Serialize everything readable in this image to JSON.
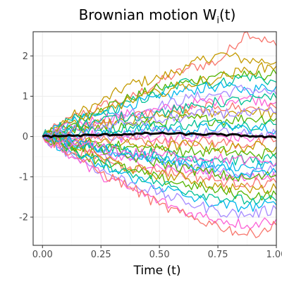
{
  "chart_data": {
    "type": "line",
    "title": {
      "main": "Brownian motion W",
      "subscript": "i",
      "suffix": "(t)"
    },
    "xlabel": "Time (t)",
    "ylabel": "",
    "xlim": [
      -0.04,
      1.0
    ],
    "ylim": [
      -2.7,
      2.6
    ],
    "x_ticks": [
      0,
      0.25,
      0.5,
      0.75,
      1.0
    ],
    "x_tick_labels": [
      "0.00",
      "0.25",
      "0.50",
      "0.75",
      "1.00"
    ],
    "y_ticks": [
      -2,
      -1,
      0,
      1,
      2
    ],
    "y_tick_labels": [
      "-2",
      "-1",
      "0",
      "1",
      "2"
    ],
    "grid": true,
    "legend": "none",
    "palette": [
      "#F8766D",
      "#C49A00",
      "#53B400",
      "#00C094",
      "#00B6EB",
      "#A58AFF",
      "#FB61D7"
    ],
    "mean_line_color": "#000000",
    "series_x": [
      0,
      0.125,
      0.25,
      0.375,
      0.5,
      0.625,
      0.75,
      0.875,
      1.0
    ],
    "series": [
      {
        "values": [
          0,
          0.45,
          0.75,
          0.95,
          1.35,
          1.7,
          1.85,
          2.6,
          2.25
        ]
      },
      {
        "values": [
          0,
          0.5,
          0.85,
          1.3,
          1.45,
          1.75,
          2.05,
          1.9,
          1.85
        ]
      },
      {
        "values": [
          0,
          0.3,
          0.7,
          0.95,
          1.2,
          1.35,
          1.55,
          1.5,
          1.55
        ]
      },
      {
        "values": [
          0,
          0.4,
          0.55,
          0.85,
          1.05,
          1.4,
          1.3,
          1.5,
          1.35
        ]
      },
      {
        "values": [
          0,
          0.35,
          0.55,
          0.8,
          0.95,
          1.15,
          1.25,
          1.15,
          1.25
        ]
      },
      {
        "values": [
          0,
          0.2,
          0.35,
          0.6,
          0.75,
          0.95,
          1.05,
          1.2,
          1.05
        ]
      },
      {
        "values": [
          0,
          0.25,
          0.45,
          0.55,
          0.65,
          0.8,
          0.9,
          0.95,
          0.85
        ]
      },
      {
        "values": [
          0,
          0.15,
          0.3,
          0.5,
          0.6,
          0.65,
          0.75,
          0.7,
          0.7
        ]
      },
      {
        "values": [
          0,
          0.1,
          0.3,
          0.35,
          0.5,
          0.55,
          0.55,
          0.65,
          0.55
        ]
      },
      {
        "values": [
          0,
          0.2,
          0.15,
          0.3,
          0.35,
          0.45,
          0.4,
          0.45,
          0.45
        ]
      },
      {
        "values": [
          0,
          0.05,
          0.15,
          0.25,
          0.25,
          0.3,
          0.35,
          0.3,
          0.3
        ]
      },
      {
        "values": [
          0,
          0.1,
          0.05,
          0.15,
          0.2,
          0.15,
          0.25,
          0.2,
          0.15
        ]
      },
      {
        "values": [
          0,
          0.05,
          0.0,
          0.05,
          0.1,
          0.05,
          0.1,
          0.05,
          0.05
        ]
      },
      {
        "values": [
          0,
          -0.05,
          0.05,
          -0.05,
          0.0,
          -0.05,
          0.0,
          -0.05,
          0.0
        ]
      },
      {
        "values": [
          0,
          0.0,
          -0.1,
          -0.05,
          -0.15,
          -0.1,
          -0.15,
          -0.2,
          -0.1
        ]
      },
      {
        "values": [
          0,
          -0.1,
          -0.15,
          -0.2,
          -0.25,
          -0.2,
          -0.3,
          -0.25,
          -0.25
        ]
      },
      {
        "values": [
          0,
          -0.15,
          -0.2,
          -0.25,
          -0.3,
          -0.4,
          -0.35,
          -0.45,
          -0.4
        ]
      },
      {
        "values": [
          0,
          -0.1,
          -0.25,
          -0.35,
          -0.45,
          -0.5,
          -0.55,
          -0.6,
          -0.55
        ]
      },
      {
        "values": [
          0,
          -0.2,
          -0.35,
          -0.45,
          -0.55,
          -0.6,
          -0.7,
          -0.75,
          -0.7
        ]
      },
      {
        "values": [
          0,
          -0.15,
          -0.4,
          -0.55,
          -0.65,
          -0.75,
          -0.85,
          -0.9,
          -0.85
        ]
      },
      {
        "values": [
          0,
          -0.25,
          -0.45,
          -0.6,
          -0.75,
          -0.85,
          -0.95,
          -1.05,
          -1.0
        ]
      },
      {
        "values": [
          0,
          -0.3,
          -0.55,
          -0.75,
          -0.85,
          -0.95,
          -1.1,
          -1.15,
          -1.15
        ]
      },
      {
        "values": [
          0,
          -0.2,
          -0.5,
          -0.8,
          -0.95,
          -1.05,
          -1.25,
          -1.3,
          -1.3
        ]
      },
      {
        "values": [
          0,
          -0.35,
          -0.6,
          -0.85,
          -1.05,
          -1.2,
          -1.35,
          -1.45,
          -1.45
        ]
      },
      {
        "values": [
          0,
          -0.3,
          -0.65,
          -0.9,
          -1.15,
          -1.35,
          -1.5,
          -1.6,
          -1.6
        ]
      },
      {
        "values": [
          0,
          -0.4,
          -0.75,
          -1.0,
          -1.25,
          -1.5,
          -1.7,
          -1.75,
          -1.7
        ]
      },
      {
        "values": [
          0,
          -0.45,
          -0.85,
          -1.15,
          -1.4,
          -1.65,
          -1.85,
          -1.95,
          -1.8
        ]
      },
      {
        "values": [
          0,
          -0.5,
          -0.95,
          -1.3,
          -1.6,
          -1.9,
          -2.05,
          -2.2,
          -2.05
        ]
      },
      {
        "values": [
          0,
          -0.4,
          -0.9,
          -1.25,
          -1.7,
          -2.0,
          -2.2,
          -2.45,
          -2.2
        ]
      },
      {
        "values": [
          0,
          0.35,
          0.6,
          0.9,
          1.1,
          1.3,
          1.45,
          1.65,
          1.75
        ]
      },
      {
        "values": [
          0,
          -0.25,
          -0.3,
          -0.5,
          -0.65,
          -0.8,
          -0.95,
          -1.05,
          -0.95
        ]
      },
      {
        "values": [
          0,
          0.25,
          0.4,
          0.5,
          0.6,
          0.7,
          0.85,
          0.9,
          0.95
        ]
      },
      {
        "values": [
          0,
          -0.1,
          -0.3,
          -0.4,
          -0.55,
          -0.7,
          -0.8,
          -0.95,
          -0.9
        ]
      },
      {
        "values": [
          0,
          0.15,
          0.2,
          0.35,
          0.4,
          0.5,
          0.6,
          0.55,
          0.6
        ]
      },
      {
        "values": [
          0,
          -0.2,
          -0.25,
          -0.4,
          -0.45,
          -0.5,
          -0.55,
          -0.6,
          -0.65
        ]
      }
    ],
    "mean_series": {
      "values": [
        0,
        0.02,
        0.04,
        0.06,
        0.08,
        0.06,
        0.05,
        0.02,
        -0.03
      ]
    }
  }
}
